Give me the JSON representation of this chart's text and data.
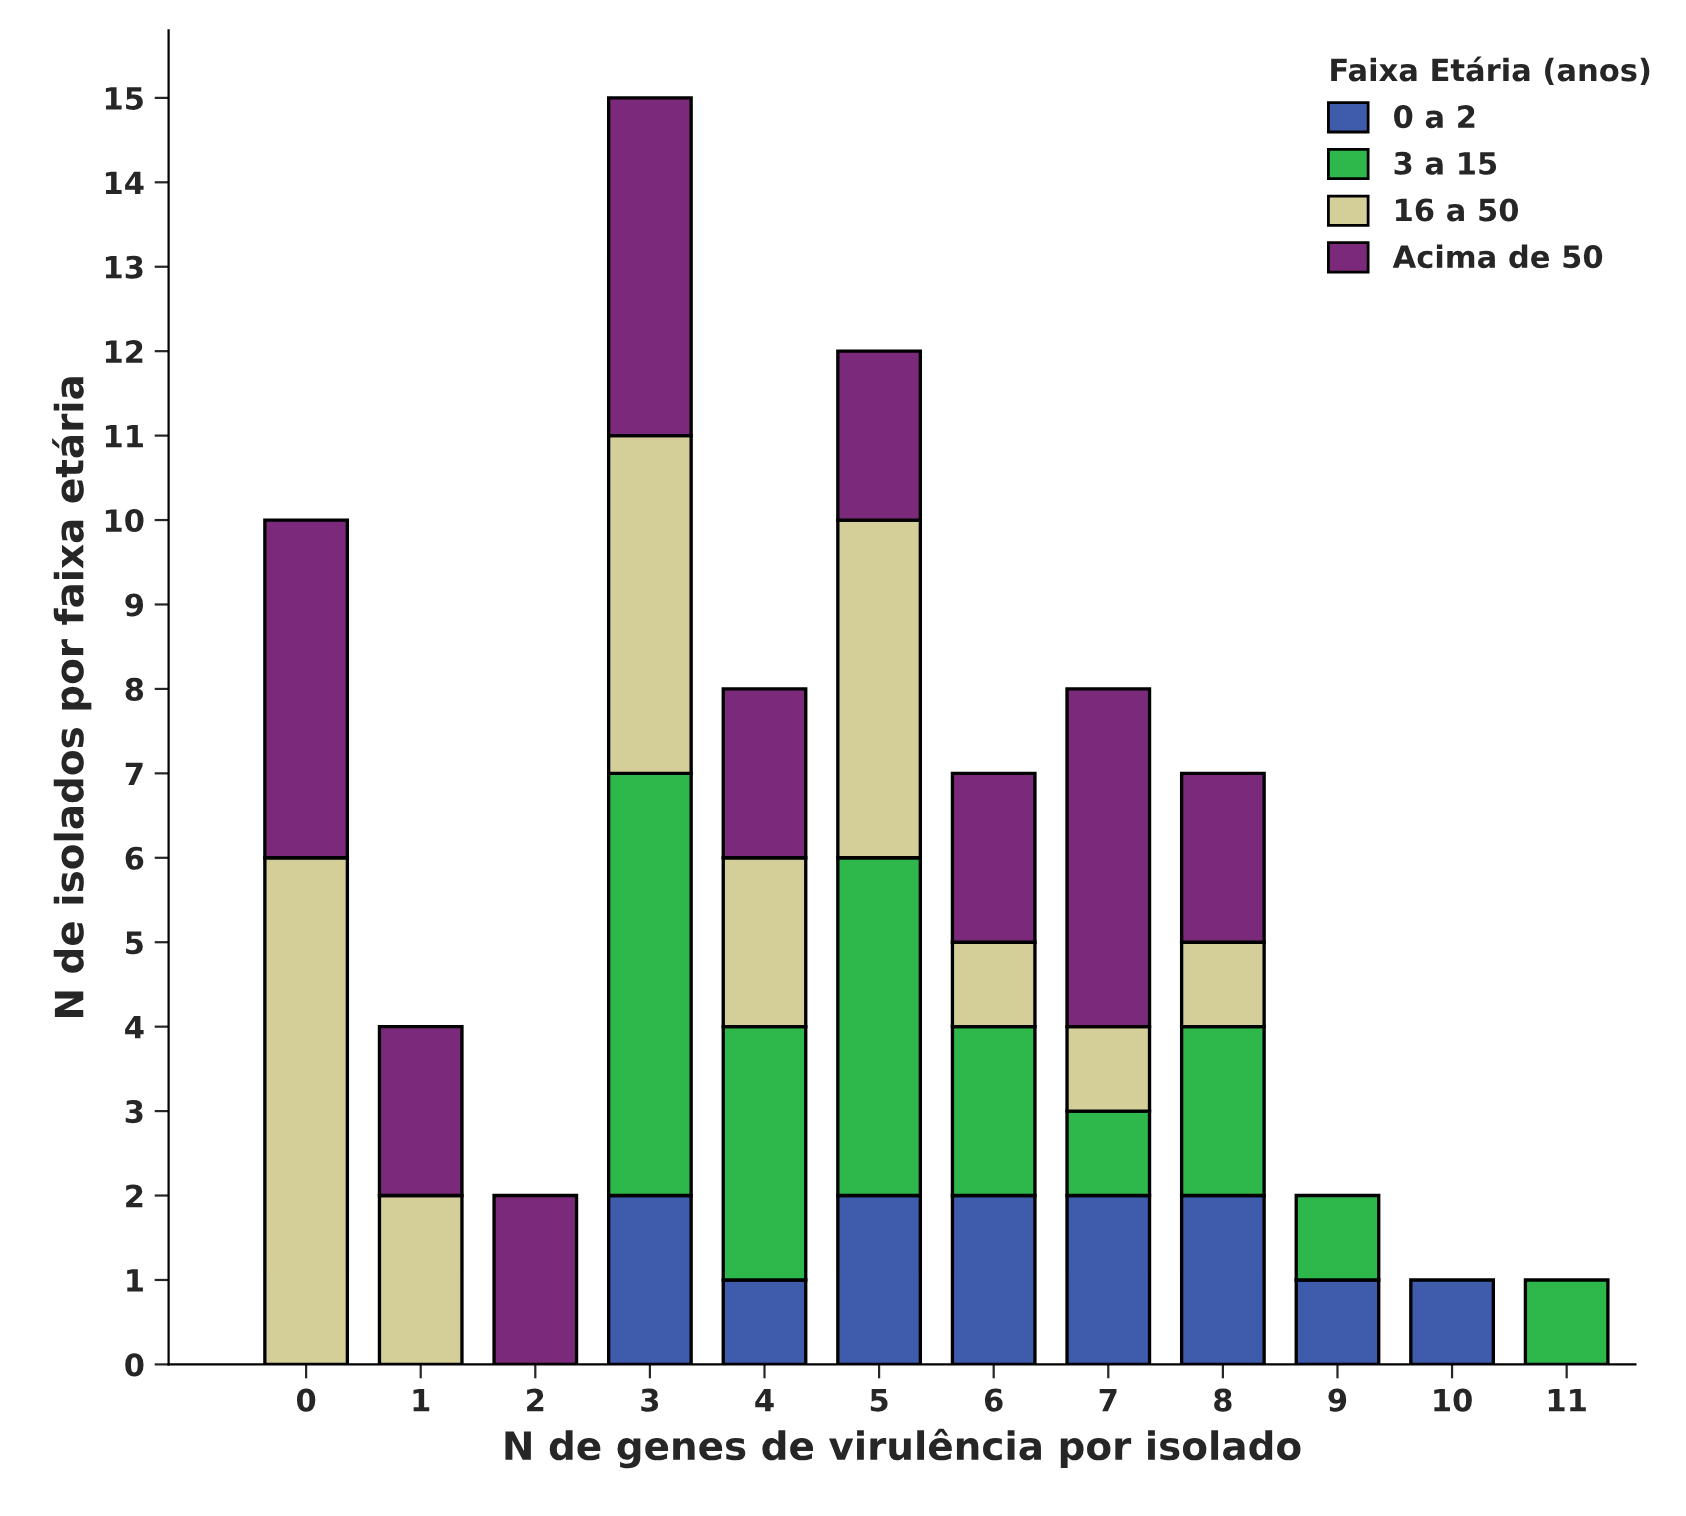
{
  "chart_data": {
    "type": "bar",
    "stacked": true,
    "xlabel": "N de genes de virulência por isolado",
    "ylabel": "N de isolados por faixa etária",
    "legend_title": "Faixa Etária (anos)",
    "legend": "top right",
    "grid": false,
    "categories": [
      "0",
      "1",
      "2",
      "3",
      "4",
      "5",
      "6",
      "7",
      "8",
      "9",
      "10",
      "11"
    ],
    "ylim": [
      0,
      15.8
    ],
    "yticks": [
      0,
      1,
      2,
      3,
      4,
      5,
      6,
      7,
      8,
      9,
      10,
      11,
      12,
      13,
      14,
      15
    ],
    "series": [
      {
        "name": "0 a 2",
        "color": "#3f5bab",
        "values": [
          0,
          0,
          0,
          2,
          1,
          2,
          2,
          2,
          2,
          1,
          1,
          0
        ]
      },
      {
        "name": "3 a 15",
        "color": "#2eb84b",
        "values": [
          0,
          0,
          0,
          5,
          3,
          4,
          2,
          1,
          2,
          1,
          0,
          1
        ]
      },
      {
        "name": "16 a 50",
        "color": "#d4cf98",
        "values": [
          6,
          2,
          0,
          4,
          2,
          4,
          1,
          1,
          1,
          0,
          0,
          0
        ]
      },
      {
        "name": "Acima de 50",
        "color": "#7b2a7b",
        "values": [
          4,
          2,
          2,
          4,
          2,
          2,
          2,
          4,
          2,
          0,
          0,
          0
        ]
      }
    ]
  }
}
